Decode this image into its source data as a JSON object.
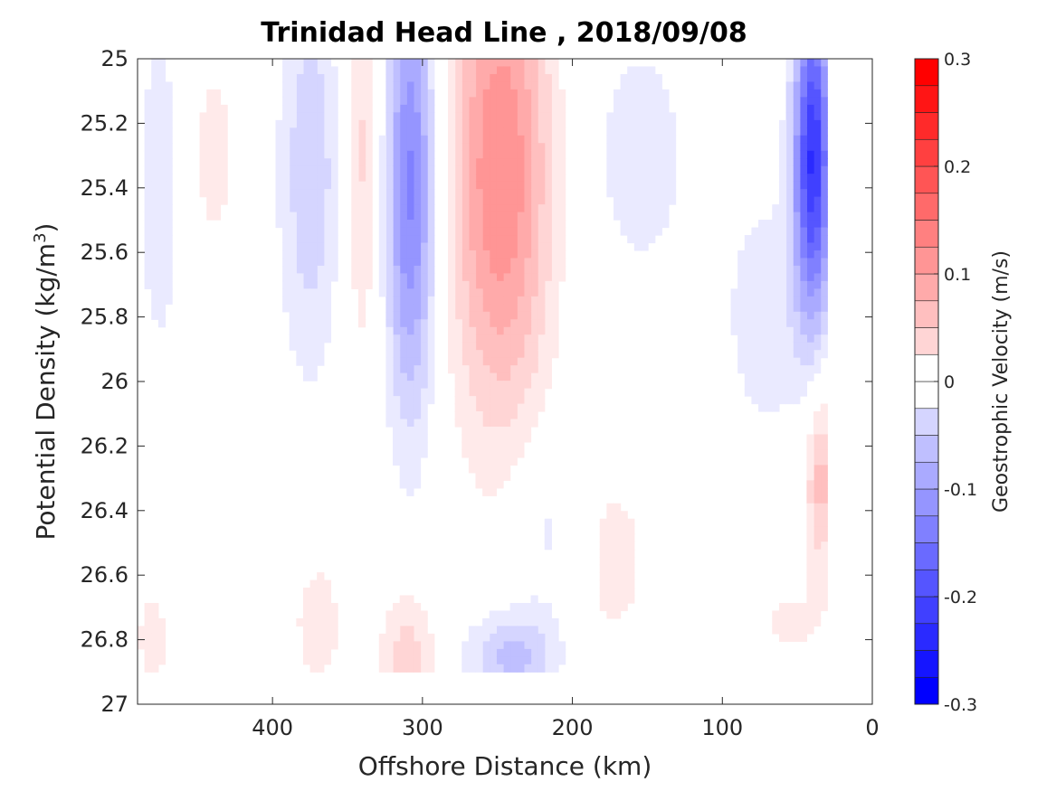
{
  "chart_data": {
    "type": "heatmap",
    "subtype": "filled-contour",
    "title": "Trinidad Head Line , 2018/09/08",
    "xlabel": "Offshore Distance (km)",
    "ylabel_main": "Potential Density (kg/m",
    "ylabel_sup": "3",
    "ylabel_end": ")",
    "colorbar_label": "Geostrophic Velocity (m/s)",
    "xlim": [
      490,
      0
    ],
    "ylim": [
      25,
      27
    ],
    "x_reversed": true,
    "y_reversed": true,
    "xticks": [
      400,
      300,
      200,
      100,
      0
    ],
    "xtick_labels": [
      "400",
      "300",
      "200",
      "100",
      "0"
    ],
    "yticks": [
      25,
      25.2,
      25.4,
      25.6,
      25.8,
      26,
      26.2,
      26.4,
      26.6,
      26.8,
      27
    ],
    "ytick_labels": [
      "25",
      "25.2",
      "25.4",
      "25.6",
      "25.8",
      "26",
      "26.2",
      "26.4",
      "26.6",
      "26.8",
      "27"
    ],
    "colorbar": {
      "range": [
        -0.3,
        0.3
      ],
      "step": 0.025,
      "ticks": [
        -0.3,
        -0.2,
        -0.1,
        0,
        0.1,
        0.2,
        0.3
      ],
      "tick_labels": [
        "-0.3",
        "-0.2",
        "-0.1",
        "0",
        "0.1",
        "0.2",
        "0.3"
      ],
      "negative_color": "#0000ff",
      "positive_color": "#ff0000",
      "zero_color": "#ffffff"
    },
    "data_extent": {
      "x": [
        30,
        490
      ],
      "y": [
        25,
        26.9
      ]
    },
    "features": [
      {
        "x": 475,
        "y": 25.4,
        "sx": 12,
        "sy": 0.45,
        "v": -0.04
      },
      {
        "x": 440,
        "y": 25.3,
        "sx": 14,
        "sy": 0.25,
        "v": 0.035
      },
      {
        "x": 375,
        "y": 25.35,
        "sx": 15,
        "sy": 0.45,
        "v": -0.07
      },
      {
        "x": 340,
        "y": 25.3,
        "sx": 9,
        "sy": 0.45,
        "v": 0.06
      },
      {
        "x": 308,
        "y": 25.4,
        "sx": 12,
        "sy": 0.5,
        "v": -0.16
      },
      {
        "x": 248,
        "y": 25.35,
        "sx": 24,
        "sy": 0.55,
        "v": 0.15
      },
      {
        "x": 155,
        "y": 25.3,
        "sx": 30,
        "sy": 0.35,
        "v": -0.035
      },
      {
        "x": 40,
        "y": 25.3,
        "sx": 9,
        "sy": 0.35,
        "v": -0.25
      },
      {
        "x": 70,
        "y": 25.8,
        "sx": 22,
        "sy": 0.3,
        "v": -0.04
      },
      {
        "x": 215,
        "y": 26.45,
        "sx": 18,
        "sy": 0.2,
        "v": -0.04
      },
      {
        "x": 240,
        "y": 26.85,
        "sx": 22,
        "sy": 0.1,
        "v": -0.085
      },
      {
        "x": 310,
        "y": 26.85,
        "sx": 13,
        "sy": 0.15,
        "v": 0.065
      },
      {
        "x": 370,
        "y": 26.75,
        "sx": 15,
        "sy": 0.2,
        "v": 0.035
      },
      {
        "x": 480,
        "y": 26.8,
        "sx": 10,
        "sy": 0.15,
        "v": 0.035
      },
      {
        "x": 175,
        "y": 26.55,
        "sx": 22,
        "sy": 0.25,
        "v": 0.035
      },
      {
        "x": 35,
        "y": 26.3,
        "sx": 7,
        "sy": 0.2,
        "v": 0.09
      },
      {
        "x": 55,
        "y": 26.75,
        "sx": 20,
        "sy": 0.1,
        "v": 0.03
      }
    ]
  }
}
